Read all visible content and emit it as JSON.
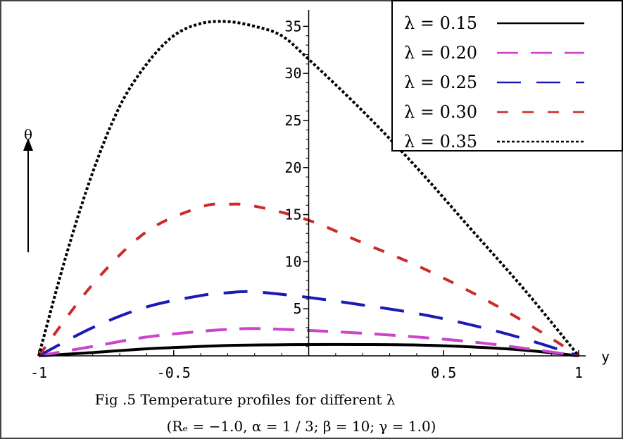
{
  "chart_data": {
    "type": "line",
    "xlabel": "y",
    "ylabel": "θ",
    "xlim": [
      -1,
      1
    ],
    "ylim": [
      0,
      36
    ],
    "x_ticks": [
      "-1",
      "-0.5",
      "0.5",
      "1"
    ],
    "x_tick_values": [
      -1,
      -0.5,
      0.5,
      1
    ],
    "y_ticks": [
      "5",
      "10",
      "15",
      "20",
      "25",
      "30",
      "35"
    ],
    "y_tick_values": [
      5,
      10,
      15,
      20,
      25,
      30,
      35
    ],
    "grid": false,
    "legend_position": "top-right",
    "series": [
      {
        "name": "λ = 0.15",
        "color": "#000000",
        "dash": "solid",
        "x": [
          -1,
          -0.8,
          -0.6,
          -0.4,
          -0.3,
          -0.2,
          0,
          0.2,
          0.4,
          0.6,
          0.8,
          1
        ],
        "y": [
          0,
          0.35,
          0.75,
          1.0,
          1.1,
          1.15,
          1.2,
          1.2,
          1.15,
          0.95,
          0.6,
          0
        ]
      },
      {
        "name": "λ = 0.20",
        "color": "#cc44cc",
        "dash": "long-dash",
        "x": [
          -1,
          -0.8,
          -0.6,
          -0.4,
          -0.3,
          -0.2,
          0,
          0.2,
          0.4,
          0.6,
          0.8,
          1
        ],
        "y": [
          0,
          1.0,
          2.0,
          2.6,
          2.8,
          2.9,
          2.7,
          2.4,
          2.0,
          1.5,
          0.8,
          0
        ]
      },
      {
        "name": "λ = 0.25",
        "color": "#1a1ab4",
        "dash": "long-dash-gap",
        "x": [
          -1,
          -0.8,
          -0.6,
          -0.4,
          -0.3,
          -0.2,
          0,
          0.2,
          0.4,
          0.6,
          0.8,
          1
        ],
        "y": [
          0,
          3.0,
          5.2,
          6.4,
          6.7,
          6.8,
          6.2,
          5.4,
          4.5,
          3.3,
          1.8,
          0
        ]
      },
      {
        "name": "λ = 0.30",
        "color": "#cc2a2a",
        "dash": "dash",
        "x": [
          -1,
          -0.8,
          -0.6,
          -0.4,
          -0.3,
          -0.2,
          0,
          0.2,
          0.4,
          0.6,
          0.8,
          1
        ],
        "y": [
          0,
          7.6,
          13.2,
          15.8,
          16.1,
          15.9,
          14.4,
          12.0,
          9.6,
          6.8,
          3.6,
          0
        ]
      },
      {
        "name": "λ = 0.35",
        "color": "#000000",
        "dash": "dotted",
        "x": [
          -1,
          -0.9,
          -0.8,
          -0.7,
          -0.6,
          -0.5,
          -0.4,
          -0.3,
          -0.2,
          -0.1,
          0,
          0.2,
          0.4,
          0.6,
          0.8,
          1
        ],
        "y": [
          0,
          10.5,
          19.5,
          26.5,
          31.0,
          34.0,
          35.3,
          35.5,
          35.0,
          34.0,
          31.5,
          26.0,
          20.0,
          13.5,
          7.0,
          0
        ]
      }
    ]
  },
  "caption": {
    "line1": "Fig .5 Temperature profiles for different λ",
    "line2": "(Rₑ = −1.0,  α = 1 / 3; β = 10; γ = 1.0)"
  }
}
